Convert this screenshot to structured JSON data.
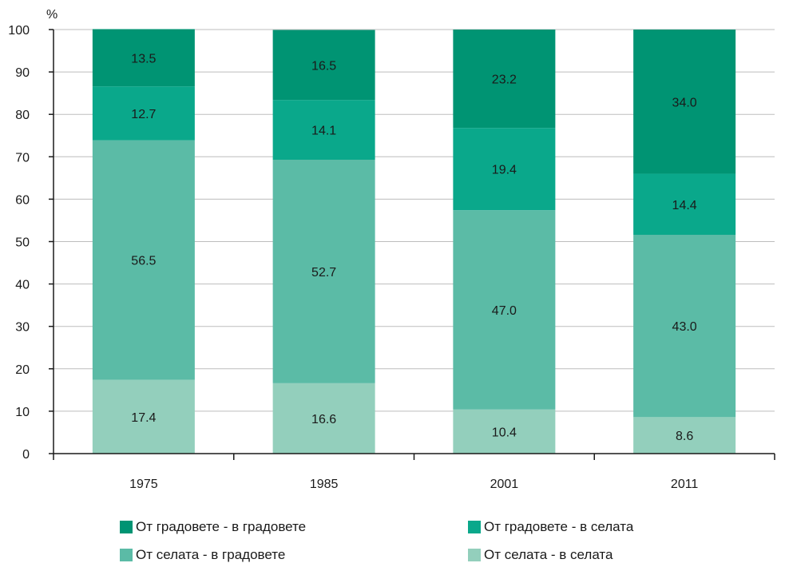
{
  "chart_data": {
    "type": "bar",
    "stacked": true,
    "y_unit_label": "%",
    "ylim": [
      0,
      100
    ],
    "yticks": [
      0,
      10,
      20,
      30,
      40,
      50,
      60,
      70,
      80,
      90,
      100
    ],
    "grid": true,
    "legend_position": "bottom",
    "categories": [
      "1975",
      "1985",
      "2001",
      "2011"
    ],
    "series": [
      {
        "name": "От селата - в селата",
        "color": "#93cfbc",
        "values": [
          17.4,
          16.6,
          10.4,
          8.6
        ]
      },
      {
        "name": "От селата - в градовете",
        "color": "#5bbba6",
        "values": [
          56.5,
          52.7,
          47.0,
          43.0
        ]
      },
      {
        "name": "От градовете - в селата",
        "color": "#0aa88b",
        "values": [
          12.7,
          14.1,
          19.4,
          14.4
        ]
      },
      {
        "name": "От градовете - в градовете",
        "color": "#009473",
        "values": [
          13.5,
          16.5,
          23.2,
          34.0
        ]
      }
    ],
    "data_labels": [
      [
        "17.4",
        "16.6",
        "10.4",
        "8.6"
      ],
      [
        "56.5",
        "52.7",
        "47.0",
        "43.0"
      ],
      [
        "12.7",
        "14.1",
        "19.4",
        "14.4"
      ],
      [
        "13.5",
        "16.5",
        "23.2",
        "34.0"
      ]
    ]
  },
  "legend": {
    "items": [
      {
        "label": "От градовете - в градовете",
        "color": "#009473"
      },
      {
        "label": "От градовете - в селата",
        "color": "#0aa88b"
      },
      {
        "label": "От селата - в градовете",
        "color": "#5bbba6"
      },
      {
        "label": "От селата - в селата",
        "color": "#93cfbc"
      }
    ]
  }
}
